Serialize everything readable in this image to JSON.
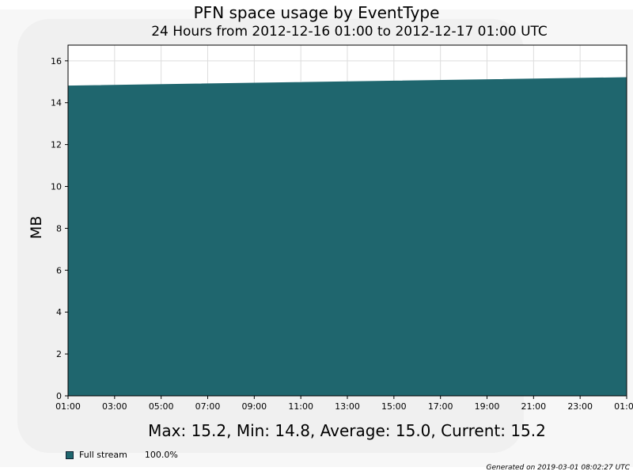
{
  "chart_data": {
    "type": "area",
    "title": "PFN space usage by EventType",
    "subtitle": "24 Hours from 2012-12-16 01:00 to 2012-12-17 01:00 UTC",
    "ylabel": "MB",
    "xlabel": "",
    "ylim": [
      0,
      16.75
    ],
    "yticks": [
      0,
      2,
      4,
      6,
      8,
      10,
      12,
      14,
      16
    ],
    "xticks": [
      "01:00",
      "03:00",
      "05:00",
      "07:00",
      "09:00",
      "11:00",
      "13:00",
      "15:00",
      "17:00",
      "19:00",
      "21:00",
      "23:00",
      "01:00"
    ],
    "grid": true,
    "series": [
      {
        "name": "Full stream",
        "color": "#1f666e",
        "x_hours": [
          0,
          24
        ],
        "values": [
          14.8,
          15.2
        ]
      }
    ]
  },
  "summary": "Max: 15.2, Min: 14.8, Average: 15.0, Current: 15.2",
  "legend": [
    {
      "label": "Full stream",
      "percent": "100.0%",
      "color": "#1f666e"
    }
  ],
  "footer": "Generated on 2019-03-01 08:02:27 UTC"
}
